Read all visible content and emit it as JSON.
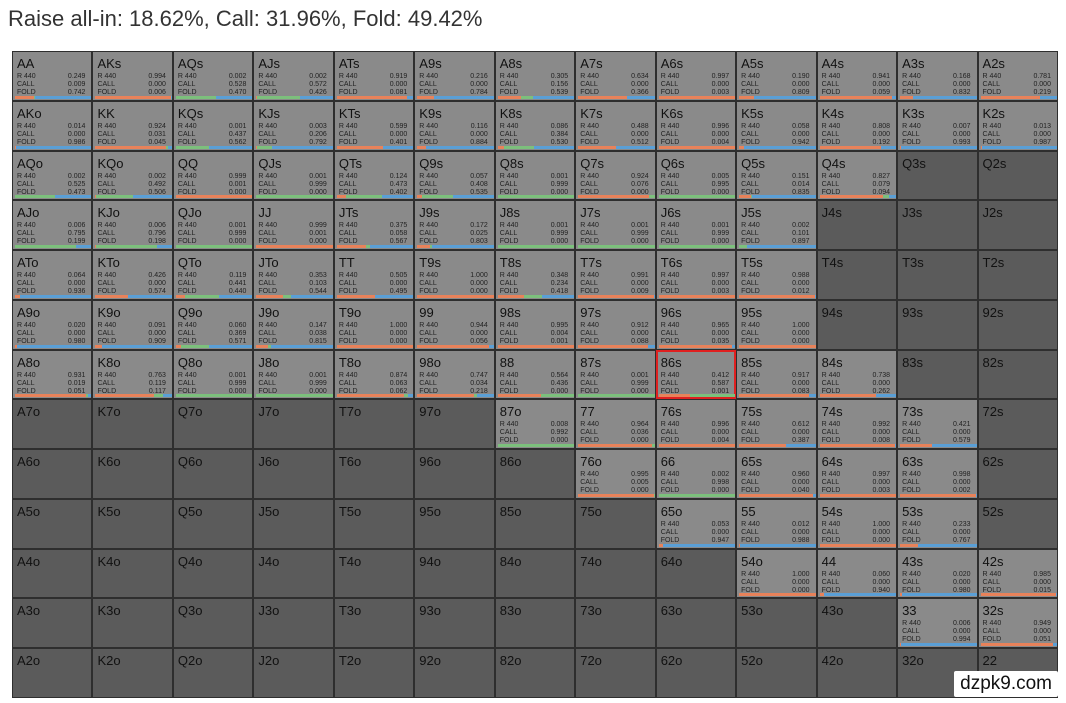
{
  "header": {
    "title": "Raise all-in: 18.62%, Call: 31.96%, Fold: 49.42%"
  },
  "labels": {
    "raise": "R 440",
    "call": "CALL",
    "fold": "FOLD"
  },
  "watermark": "dzpk9.com",
  "grid": {
    "rows": [
      [
        {
          "hand": "AA",
          "raise": "0.249",
          "call": "0.009",
          "fold": "0.742"
        },
        {
          "hand": "AKs",
          "raise": "0.994",
          "call": "0.000",
          "fold": "0.006"
        },
        {
          "hand": "AQs",
          "raise": "0.002",
          "call": "0.528",
          "fold": "0.470"
        },
        {
          "hand": "AJs",
          "raise": "0.002",
          "call": "0.572",
          "fold": "0.426"
        },
        {
          "hand": "ATs",
          "raise": "0.919",
          "call": "0.000",
          "fold": "0.081"
        },
        {
          "hand": "A9s",
          "raise": "0.216",
          "call": "0.000",
          "fold": "0.784"
        },
        {
          "hand": "A8s",
          "raise": "0.305",
          "call": "0.156",
          "fold": "0.539"
        },
        {
          "hand": "A7s",
          "raise": "0.634",
          "call": "0.000",
          "fold": "0.366"
        },
        {
          "hand": "A6s",
          "raise": "0.997",
          "call": "0.000",
          "fold": "0.003"
        },
        {
          "hand": "A5s",
          "raise": "0.190",
          "call": "0.000",
          "fold": "0.809"
        },
        {
          "hand": "A4s",
          "raise": "0.941",
          "call": "0.000",
          "fold": "0.059"
        },
        {
          "hand": "A3s",
          "raise": "0.168",
          "call": "0.000",
          "fold": "0.832"
        },
        {
          "hand": "A2s",
          "raise": "0.781",
          "call": "0.000",
          "fold": "0.219"
        }
      ],
      [
        {
          "hand": "AKo",
          "raise": "0.014",
          "call": "0.000",
          "fold": "0.986"
        },
        {
          "hand": "KK",
          "raise": "0.924",
          "call": "0.031",
          "fold": "0.045"
        },
        {
          "hand": "KQs",
          "raise": "0.001",
          "call": "0.437",
          "fold": "0.562"
        },
        {
          "hand": "KJs",
          "raise": "0.003",
          "call": "0.206",
          "fold": "0.792"
        },
        {
          "hand": "KTs",
          "raise": "0.599",
          "call": "0.000",
          "fold": "0.401"
        },
        {
          "hand": "K9s",
          "raise": "0.116",
          "call": "0.000",
          "fold": "0.884"
        },
        {
          "hand": "K8s",
          "raise": "0.086",
          "call": "0.384",
          "fold": "0.530"
        },
        {
          "hand": "K7s",
          "raise": "0.488",
          "call": "0.000",
          "fold": "0.512"
        },
        {
          "hand": "K6s",
          "raise": "0.996",
          "call": "0.000",
          "fold": "0.004"
        },
        {
          "hand": "K5s",
          "raise": "0.058",
          "call": "0.000",
          "fold": "0.942"
        },
        {
          "hand": "K4s",
          "raise": "0.808",
          "call": "0.000",
          "fold": "0.192"
        },
        {
          "hand": "K3s",
          "raise": "0.007",
          "call": "0.000",
          "fold": "0.993"
        },
        {
          "hand": "K2s",
          "raise": "0.013",
          "call": "0.000",
          "fold": "0.987"
        }
      ],
      [
        {
          "hand": "AQo",
          "raise": "0.002",
          "call": "0.525",
          "fold": "0.473"
        },
        {
          "hand": "KQo",
          "raise": "0.002",
          "call": "0.492",
          "fold": "0.506"
        },
        {
          "hand": "QQ",
          "raise": "0.999",
          "call": "0.001",
          "fold": "0.000"
        },
        {
          "hand": "QJs",
          "raise": "0.001",
          "call": "0.999",
          "fold": "0.000"
        },
        {
          "hand": "QTs",
          "raise": "0.124",
          "call": "0.473",
          "fold": "0.402"
        },
        {
          "hand": "Q9s",
          "raise": "0.057",
          "call": "0.408",
          "fold": "0.535"
        },
        {
          "hand": "Q8s",
          "raise": "0.001",
          "call": "0.999",
          "fold": "0.000"
        },
        {
          "hand": "Q7s",
          "raise": "0.924",
          "call": "0.076",
          "fold": "0.000"
        },
        {
          "hand": "Q6s",
          "raise": "0.005",
          "call": "0.995",
          "fold": "0.000"
        },
        {
          "hand": "Q5s",
          "raise": "0.151",
          "call": "0.014",
          "fold": "0.835"
        },
        {
          "hand": "Q4s",
          "raise": "0.827",
          "call": "0.079",
          "fold": "0.094"
        },
        {
          "hand": "Q3s"
        },
        {
          "hand": "Q2s"
        }
      ],
      [
        {
          "hand": "AJo",
          "raise": "0.006",
          "call": "0.795",
          "fold": "0.199"
        },
        {
          "hand": "KJo",
          "raise": "0.006",
          "call": "0.796",
          "fold": "0.198"
        },
        {
          "hand": "QJo",
          "raise": "0.001",
          "call": "0.999",
          "fold": "0.000"
        },
        {
          "hand": "JJ",
          "raise": "0.999",
          "call": "0.001",
          "fold": "0.000"
        },
        {
          "hand": "JTs",
          "raise": "0.375",
          "call": "0.058",
          "fold": "0.567"
        },
        {
          "hand": "J9s",
          "raise": "0.172",
          "call": "0.025",
          "fold": "0.803"
        },
        {
          "hand": "J8s",
          "raise": "0.001",
          "call": "0.999",
          "fold": "0.000"
        },
        {
          "hand": "J7s",
          "raise": "0.001",
          "call": "0.999",
          "fold": "0.000"
        },
        {
          "hand": "J6s",
          "raise": "0.001",
          "call": "0.999",
          "fold": "0.000"
        },
        {
          "hand": "J5s",
          "raise": "0.002",
          "call": "0.101",
          "fold": "0.897"
        },
        {
          "hand": "J4s"
        },
        {
          "hand": "J3s"
        },
        {
          "hand": "J2s"
        }
      ],
      [
        {
          "hand": "ATo",
          "raise": "0.064",
          "call": "0.000",
          "fold": "0.936"
        },
        {
          "hand": "KTo",
          "raise": "0.426",
          "call": "0.000",
          "fold": "0.574"
        },
        {
          "hand": "QTo",
          "raise": "0.119",
          "call": "0.441",
          "fold": "0.440"
        },
        {
          "hand": "JTo",
          "raise": "0.353",
          "call": "0.103",
          "fold": "0.544"
        },
        {
          "hand": "TT",
          "raise": "0.505",
          "call": "0.000",
          "fold": "0.495"
        },
        {
          "hand": "T9s",
          "raise": "1.000",
          "call": "0.000",
          "fold": "0.000"
        },
        {
          "hand": "T8s",
          "raise": "0.348",
          "call": "0.234",
          "fold": "0.418"
        },
        {
          "hand": "T7s",
          "raise": "0.991",
          "call": "0.000",
          "fold": "0.009"
        },
        {
          "hand": "T6s",
          "raise": "0.997",
          "call": "0.000",
          "fold": "0.003"
        },
        {
          "hand": "T5s",
          "raise": "0.988",
          "call": "0.000",
          "fold": "0.012"
        },
        {
          "hand": "T4s"
        },
        {
          "hand": "T3s"
        },
        {
          "hand": "T2s"
        }
      ],
      [
        {
          "hand": "A9o",
          "raise": "0.020",
          "call": "0.000",
          "fold": "0.980"
        },
        {
          "hand": "K9o",
          "raise": "0.091",
          "call": "0.000",
          "fold": "0.909"
        },
        {
          "hand": "Q9o",
          "raise": "0.060",
          "call": "0.369",
          "fold": "0.571"
        },
        {
          "hand": "J9o",
          "raise": "0.147",
          "call": "0.038",
          "fold": "0.815"
        },
        {
          "hand": "T9o",
          "raise": "1.000",
          "call": "0.000",
          "fold": "0.000"
        },
        {
          "hand": "99",
          "raise": "0.944",
          "call": "0.000",
          "fold": "0.056"
        },
        {
          "hand": "98s",
          "raise": "0.995",
          "call": "0.004",
          "fold": "0.001"
        },
        {
          "hand": "97s",
          "raise": "0.912",
          "call": "0.000",
          "fold": "0.088"
        },
        {
          "hand": "96s",
          "raise": "0.965",
          "call": "0.000",
          "fold": "0.035"
        },
        {
          "hand": "95s",
          "raise": "1.000",
          "call": "0.000",
          "fold": "0.000"
        },
        {
          "hand": "94s"
        },
        {
          "hand": "93s"
        },
        {
          "hand": "92s"
        }
      ],
      [
        {
          "hand": "A8o",
          "raise": "0.931",
          "call": "0.019",
          "fold": "0.051"
        },
        {
          "hand": "K8o",
          "raise": "0.763",
          "call": "0.119",
          "fold": "0.117"
        },
        {
          "hand": "Q8o",
          "raise": "0.001",
          "call": "0.999",
          "fold": "0.000"
        },
        {
          "hand": "J8o",
          "raise": "0.001",
          "call": "0.999",
          "fold": "0.000"
        },
        {
          "hand": "T8o",
          "raise": "0.874",
          "call": "0.063",
          "fold": "0.062"
        },
        {
          "hand": "98o",
          "raise": "0.747",
          "call": "0.034",
          "fold": "0.218"
        },
        {
          "hand": "88",
          "raise": "0.564",
          "call": "0.436",
          "fold": "0.000"
        },
        {
          "hand": "87s",
          "raise": "0.001",
          "call": "0.999",
          "fold": "0.000"
        },
        {
          "hand": "86s",
          "raise": "0.412",
          "call": "0.587",
          "fold": "0.001"
        },
        {
          "hand": "85s",
          "raise": "0.917",
          "call": "0.000",
          "fold": "0.083"
        },
        {
          "hand": "84s",
          "raise": "0.738",
          "call": "0.000",
          "fold": "0.262"
        },
        {
          "hand": "83s"
        },
        {
          "hand": "82s"
        }
      ],
      [
        {
          "hand": "A7o"
        },
        {
          "hand": "K7o"
        },
        {
          "hand": "Q7o"
        },
        {
          "hand": "J7o"
        },
        {
          "hand": "T7o"
        },
        {
          "hand": "97o"
        },
        {
          "hand": "87o",
          "raise": "0.008",
          "call": "0.992",
          "fold": "0.000"
        },
        {
          "hand": "77",
          "raise": "0.964",
          "call": "0.036",
          "fold": "0.000"
        },
        {
          "hand": "76s",
          "raise": "0.996",
          "call": "0.000",
          "fold": "0.004"
        },
        {
          "hand": "75s",
          "raise": "0.612",
          "call": "0.000",
          "fold": "0.387"
        },
        {
          "hand": "74s",
          "raise": "0.992",
          "call": "0.000",
          "fold": "0.008"
        },
        {
          "hand": "73s",
          "raise": "0.421",
          "call": "0.000",
          "fold": "0.579"
        },
        {
          "hand": "72s"
        }
      ],
      [
        {
          "hand": "A6o"
        },
        {
          "hand": "K6o"
        },
        {
          "hand": "Q6o"
        },
        {
          "hand": "J6o"
        },
        {
          "hand": "T6o"
        },
        {
          "hand": "96o"
        },
        {
          "hand": "86o"
        },
        {
          "hand": "76o",
          "raise": "0.995",
          "call": "0.005",
          "fold": "0.000"
        },
        {
          "hand": "66",
          "raise": "0.002",
          "call": "0.998",
          "fold": "0.000"
        },
        {
          "hand": "65s",
          "raise": "0.960",
          "call": "0.000",
          "fold": "0.040"
        },
        {
          "hand": "64s",
          "raise": "0.997",
          "call": "0.000",
          "fold": "0.003"
        },
        {
          "hand": "63s",
          "raise": "0.998",
          "call": "0.000",
          "fold": "0.002"
        },
        {
          "hand": "62s"
        }
      ],
      [
        {
          "hand": "A5o"
        },
        {
          "hand": "K5o"
        },
        {
          "hand": "Q5o"
        },
        {
          "hand": "J5o"
        },
        {
          "hand": "T5o"
        },
        {
          "hand": "95o"
        },
        {
          "hand": "85o"
        },
        {
          "hand": "75o"
        },
        {
          "hand": "65o",
          "raise": "0.053",
          "call": "0.000",
          "fold": "0.947"
        },
        {
          "hand": "55",
          "raise": "0.012",
          "call": "0.000",
          "fold": "0.988"
        },
        {
          "hand": "54s",
          "raise": "1.000",
          "call": "0.000",
          "fold": "0.000"
        },
        {
          "hand": "53s",
          "raise": "0.233",
          "call": "0.000",
          "fold": "0.767"
        },
        {
          "hand": "52s"
        }
      ],
      [
        {
          "hand": "A4o"
        },
        {
          "hand": "K4o"
        },
        {
          "hand": "Q4o"
        },
        {
          "hand": "J4o"
        },
        {
          "hand": "T4o"
        },
        {
          "hand": "94o"
        },
        {
          "hand": "84o"
        },
        {
          "hand": "74o"
        },
        {
          "hand": "64o"
        },
        {
          "hand": "54o",
          "raise": "1.000",
          "call": "0.000",
          "fold": "0.000"
        },
        {
          "hand": "44",
          "raise": "0.060",
          "call": "0.000",
          "fold": "0.940"
        },
        {
          "hand": "43s",
          "raise": "0.020",
          "call": "0.000",
          "fold": "0.980"
        },
        {
          "hand": "42s",
          "raise": "0.985",
          "call": "0.000",
          "fold": "0.015"
        }
      ],
      [
        {
          "hand": "A3o"
        },
        {
          "hand": "K3o"
        },
        {
          "hand": "Q3o"
        },
        {
          "hand": "J3o"
        },
        {
          "hand": "T3o"
        },
        {
          "hand": "93o"
        },
        {
          "hand": "83o"
        },
        {
          "hand": "73o"
        },
        {
          "hand": "63o"
        },
        {
          "hand": "53o"
        },
        {
          "hand": "43o"
        },
        {
          "hand": "33",
          "raise": "0.006",
          "call": "0.000",
          "fold": "0.994"
        },
        {
          "hand": "32s",
          "raise": "0.949",
          "call": "0.000",
          "fold": "0.051"
        }
      ],
      [
        {
          "hand": "A2o"
        },
        {
          "hand": "K2o"
        },
        {
          "hand": "Q2o"
        },
        {
          "hand": "J2o"
        },
        {
          "hand": "T2o"
        },
        {
          "hand": "92o"
        },
        {
          "hand": "82o"
        },
        {
          "hand": "72o"
        },
        {
          "hand": "62o"
        },
        {
          "hand": "52o"
        },
        {
          "hand": "42o"
        },
        {
          "hand": "32o"
        },
        {
          "hand": "22"
        }
      ]
    ]
  }
}
